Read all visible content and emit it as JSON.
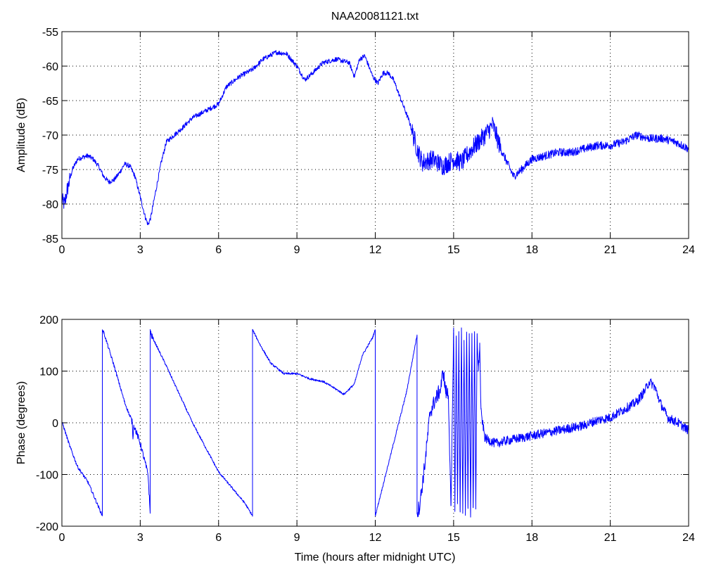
{
  "figure": {
    "title": "NAA20081121.txt",
    "xlabel": "Time (hours after midnight UTC)"
  },
  "chart_data": [
    {
      "type": "line",
      "title": "NAA20081121.txt",
      "xlabel": "",
      "ylabel": "Amplitude (dB)",
      "xlim": [
        0,
        24
      ],
      "ylim": [
        -85,
        -55
      ],
      "xticks": [
        0,
        3,
        6,
        9,
        12,
        15,
        18,
        21,
        24
      ],
      "yticks": [
        -85,
        -80,
        -75,
        -70,
        -65,
        -60,
        -55
      ],
      "grid": true,
      "line_color": "#0000ff",
      "noise": [
        {
          "from": 0,
          "to": 0.3,
          "amp": 1.2
        },
        {
          "from": 0.3,
          "to": 13.4,
          "amp": 0.35
        },
        {
          "from": 13.4,
          "to": 16.8,
          "amp": 1.4
        },
        {
          "from": 16.8,
          "to": 24,
          "amp": 0.6
        }
      ],
      "series": [
        {
          "x": [
            0,
            0.1,
            0.2,
            0.4,
            0.6,
            0.8,
            1.0,
            1.2,
            1.4,
            1.6,
            1.8,
            2.0,
            2.2,
            2.4,
            2.6,
            2.8,
            3.0,
            3.2,
            3.3,
            3.4,
            3.6,
            3.8,
            4.0,
            4.3,
            4.6,
            5.0,
            5.5,
            6.0,
            6.3,
            6.8,
            7.3,
            7.7,
            8.2,
            8.6,
            9.0,
            9.3,
            9.6,
            10.0,
            10.5,
            11.0,
            11.2,
            11.4,
            11.6,
            11.9,
            12.1,
            12.3,
            12.5,
            12.7,
            13.0,
            13.3,
            13.6,
            13.8,
            14.2,
            14.6,
            15.0,
            15.3,
            15.7,
            16.2,
            16.5,
            16.8,
            17.3,
            17.6,
            18.0,
            18.5,
            19.0,
            19.5,
            20.0,
            20.5,
            21.0,
            21.5,
            22.0,
            22.5,
            23.0,
            23.5,
            24.0
          ],
          "values": [
            -79.5,
            -80,
            -78,
            -75,
            -73.5,
            -73.2,
            -73,
            -73.5,
            -74.5,
            -76,
            -76.8,
            -76.5,
            -75.5,
            -74.2,
            -74.5,
            -76,
            -79,
            -82,
            -83,
            -82,
            -78,
            -74,
            -71,
            -70,
            -69,
            -67.5,
            -66.5,
            -65.5,
            -63,
            -61.5,
            -60.5,
            -59,
            -58,
            -58.2,
            -60,
            -62,
            -61,
            -59.5,
            -59,
            -59.5,
            -61.5,
            -59,
            -58.5,
            -61.5,
            -62.5,
            -61,
            -61,
            -62,
            -65,
            -68,
            -72,
            -74,
            -73.5,
            -74.5,
            -73.5,
            -74,
            -72,
            -70,
            -68.5,
            -72,
            -76,
            -75,
            -73.5,
            -73,
            -72.5,
            -72.5,
            -72,
            -71.5,
            -71.5,
            -71,
            -70,
            -70.5,
            -70.5,
            -71,
            -72
          ]
        }
      ]
    },
    {
      "type": "line",
      "title": "",
      "xlabel": "Time (hours after midnight UTC)",
      "ylabel": "Phase (degrees)",
      "xlim": [
        0,
        24
      ],
      "ylim": [
        -200,
        200
      ],
      "xticks": [
        0,
        3,
        6,
        9,
        12,
        15,
        18,
        21,
        24
      ],
      "yticks": [
        -200,
        -100,
        0,
        100,
        200
      ],
      "grid": true,
      "line_color": "#0000ff",
      "noise": [
        {
          "from": 0,
          "to": 2.6,
          "amp": 3
        },
        {
          "from": 2.6,
          "to": 3.5,
          "amp": 6
        },
        {
          "from": 3.5,
          "to": 13.6,
          "amp": 2
        },
        {
          "from": 13.6,
          "to": 14.8,
          "amp": 15
        },
        {
          "from": 14.8,
          "to": 16.0,
          "amp": 10
        },
        {
          "from": 16.0,
          "to": 24,
          "amp": 9
        }
      ],
      "series": [
        {
          "x": [
            0,
            0.05,
            0.3,
            0.6,
            1.0,
            1.55,
            1.55,
            1.6,
            2.0,
            2.4,
            2.7,
            2.72,
            2.74,
            2.76,
            3.0,
            3.3,
            3.38,
            3.38,
            3.42,
            4.0,
            5.0,
            6.0,
            7.0,
            7.3,
            7.3,
            7.6,
            8.0,
            8.5,
            9.0,
            9.5,
            10.0,
            10.5,
            10.8,
            11.2,
            11.5,
            11.9,
            12.0,
            12.0,
            12.05,
            12.4,
            12.8,
            13.2,
            13.6,
            13.6,
            13.7,
            13.9,
            14.1,
            14.3,
            14.5,
            14.6,
            14.7,
            14.8,
            14.9,
            15.0,
            15.05,
            15.1,
            15.15,
            15.2,
            15.25,
            15.3,
            15.35,
            15.4,
            15.45,
            15.5,
            15.55,
            15.6,
            15.65,
            15.7,
            15.75,
            15.8,
            15.85,
            15.9,
            15.95,
            16.0,
            16.05,
            16.2,
            16.6,
            17.0,
            17.5,
            18.0,
            18.5,
            19.0,
            19.5,
            20.0,
            20.5,
            21.0,
            21.5,
            22.0,
            22.3,
            22.5,
            22.7,
            22.9,
            23.2,
            23.6,
            24.0
          ],
          "values": [
            0,
            -5,
            -45,
            -85,
            -115,
            -180,
            180,
            175,
            110,
            40,
            0,
            -35,
            -10,
            -5,
            -40,
            -100,
            -175,
            180,
            170,
            110,
            0,
            -95,
            -155,
            -180,
            180,
            150,
            115,
            95,
            95,
            85,
            80,
            65,
            55,
            75,
            130,
            165,
            180,
            -180,
            -170,
            -100,
            -20,
            60,
            170,
            -175,
            -160,
            -80,
            20,
            45,
            65,
            100,
            60,
            55,
            -170,
            180,
            -175,
            175,
            -160,
            170,
            -180,
            175,
            -170,
            160,
            -175,
            180,
            -165,
            170,
            -175,
            165,
            -170,
            175,
            -170,
            170,
            100,
            150,
            20,
            -30,
            -40,
            -35,
            -30,
            -25,
            -20,
            -15,
            -10,
            -5,
            5,
            10,
            25,
            40,
            60,
            80,
            70,
            40,
            10,
            0,
            -15
          ]
        }
      ]
    }
  ]
}
